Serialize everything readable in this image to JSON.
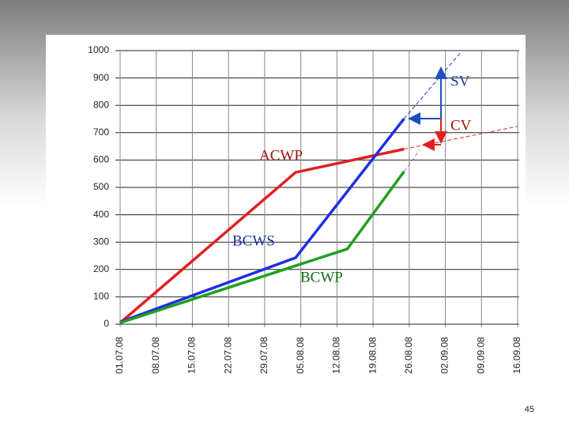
{
  "chart_data": {
    "type": "line",
    "xticks": [
      "01.07.08",
      "08.07.08",
      "15.07.08",
      "22.07.08",
      "29.07.08",
      "05.08.08",
      "12.08.08",
      "19.08.08",
      "26.08.08",
      "02.09.08",
      "09.09.08",
      "16.09.08"
    ],
    "xlim": [
      "01.07.08",
      "16.09.08"
    ],
    "ylim": [
      0,
      1000
    ],
    "yticks": [
      0,
      100,
      200,
      300,
      400,
      500,
      600,
      700,
      800,
      900,
      1000
    ],
    "grid": true,
    "series": [
      {
        "name": "ACWP",
        "color": "#e02020",
        "x": [
          "01.07.08",
          "04.08.08",
          "25.08.08"
        ],
        "values": [
          5,
          555,
          640
        ],
        "projection": {
          "x": [
            "25.08.08",
            "16.09.08"
          ],
          "values": [
            640,
            723
          ]
        }
      },
      {
        "name": "BCWS",
        "color": "#1f2fe0",
        "x": [
          "01.07.08",
          "04.08.08",
          "25.08.08"
        ],
        "values": [
          8,
          243,
          751
        ],
        "projection": {
          "x": [
            "25.08.08",
            "05.09.08"
          ],
          "values": [
            751,
            994
          ]
        }
      },
      {
        "name": "BCWP",
        "color": "#20a020",
        "x": [
          "01.07.08",
          "14.08.08",
          "25.08.08"
        ],
        "values": [
          5,
          275,
          558
        ],
        "projection": {
          "x": [
            "25.08.08",
            "28.08.08"
          ],
          "values": [
            558,
            636
          ]
        }
      }
    ],
    "annotations": [
      "SV",
      "CV"
    ]
  },
  "page_number": "45"
}
